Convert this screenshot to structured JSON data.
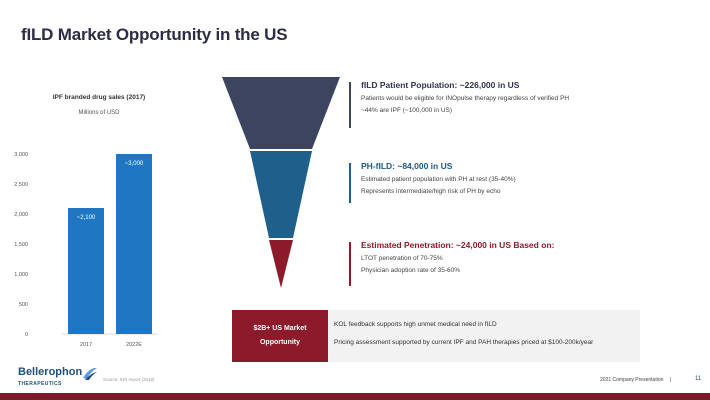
{
  "title": "fILD Market Opportunity in the US",
  "chart_data": {
    "type": "bar",
    "title": "IPF branded drug sales (2017)",
    "subtitle": "Millions of USD",
    "categories": [
      "2017",
      "2022E"
    ],
    "values": [
      2100,
      3000
    ],
    "data_labels": [
      "~2,100",
      "~3,000"
    ],
    "ylim": [
      0,
      3000
    ],
    "yticks": [
      0,
      500,
      1000,
      1500,
      2000,
      2500,
      3000
    ],
    "ytick_labels": [
      "0",
      "500",
      "1,000",
      "1,500",
      "2,000",
      "2,500",
      "3,000"
    ],
    "grid": false,
    "bar_color": "#1f77c4"
  },
  "funnel": {
    "colors": [
      "#3c4460",
      "#1f5f8b",
      "#8c1a2a"
    ],
    "blocks": [
      {
        "head": "fILD Patient Population: ~226,000 in US",
        "lines": [
          "Patients would be eligible for INOpulse therapy regardless of verified PH",
          "~44% are IPF (~100,000 in US)"
        ]
      },
      {
        "head": "PH-fILD: ~84,000 in US",
        "lines": [
          "Estimated patient population with PH at rest (35-40%)",
          "Represents intermediate/high risk of PH by echo"
        ]
      },
      {
        "head": "Estimated Penetration: ~24,000 in US Based on:",
        "lines": [
          "LTOT penetration of 70-75%",
          "Physician adoption rate of 35-60%"
        ]
      }
    ]
  },
  "summary": {
    "badge_line1": "$2B+ US Market",
    "badge_line2": "Opportunity",
    "lines": [
      "KOL feedback supports high unmet medical need in fILD",
      "Pricing assessment supported by current IPF and PAH therapies priced at $100-200k/year"
    ]
  },
  "footer": {
    "logo_name": "Bellerophon",
    "logo_sub": "THERAPEUTICS",
    "source": "Source: IHS report (2018)",
    "presentation": "2021 Company Presentation",
    "separator": "|",
    "page": "11"
  }
}
